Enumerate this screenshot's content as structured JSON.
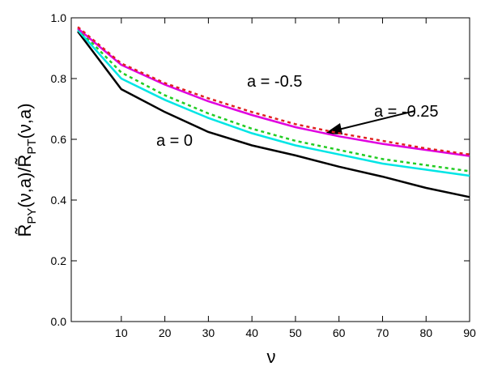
{
  "chart_data": {
    "type": "line",
    "xlabel": "ν",
    "ylabel_parts": [
      "R̃",
      "PY",
      "(ν,a)/",
      "R̃",
      "PT",
      "(ν,a)"
    ],
    "x": [
      0,
      10,
      20,
      30,
      40,
      50,
      60,
      70,
      80,
      90
    ],
    "series": [
      {
        "color": "#000000",
        "dash": false,
        "values": [
          0.955,
          0.765,
          0.69,
          0.624,
          0.58,
          0.547,
          0.51,
          0.477,
          0.44,
          0.41
        ]
      },
      {
        "color": "#00e5e5",
        "dash": false,
        "values": [
          0.96,
          0.8,
          0.73,
          0.67,
          0.62,
          0.58,
          0.55,
          0.52,
          0.5,
          0.48
        ]
      },
      {
        "color": "#22cc22",
        "dash": true,
        "values": [
          0.965,
          0.82,
          0.745,
          0.685,
          0.635,
          0.595,
          0.565,
          0.535,
          0.515,
          0.495
        ]
      },
      {
        "color": "#e000e0",
        "dash": false,
        "values": [
          0.965,
          0.845,
          0.78,
          0.725,
          0.68,
          0.64,
          0.61,
          0.585,
          0.565,
          0.545
        ]
      },
      {
        "color": "#e02020",
        "dash": true,
        "values": [
          0.97,
          0.85,
          0.785,
          0.735,
          0.69,
          0.65,
          0.62,
          0.595,
          0.57,
          0.55
        ]
      }
    ],
    "annotations": [
      "a = -0.5",
      "a = -0.25",
      "a = 0"
    ],
    "xlim": [
      -1.5,
      90
    ],
    "ylim": [
      0,
      1
    ],
    "xticks": [
      10,
      20,
      30,
      40,
      50,
      60,
      70,
      80,
      90
    ],
    "yticks": [
      {
        "value": 0,
        "label": "0.0"
      },
      {
        "value": 0.2,
        "label": "0.2"
      },
      {
        "value": 0.4,
        "label": "0.4"
      },
      {
        "value": 0.6,
        "label": "0.6"
      },
      {
        "value": 0.8,
        "label": "0.8"
      },
      {
        "value": 1,
        "label": "1.0"
      }
    ]
  }
}
